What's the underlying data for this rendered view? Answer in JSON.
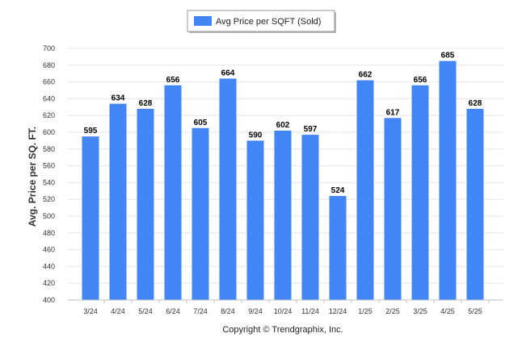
{
  "chart_data": {
    "type": "bar",
    "categories": [
      "3/24",
      "4/24",
      "5/24",
      "6/24",
      "7/24",
      "8/24",
      "9/24",
      "10/24",
      "11/24",
      "12/24",
      "1/25",
      "2/25",
      "3/25",
      "4/25",
      "5/25"
    ],
    "series": [
      {
        "name": "Avg Price per SQFT (Sold)",
        "values": [
          595,
          634,
          628,
          656,
          605,
          664,
          590,
          602,
          597,
          524,
          662,
          617,
          656,
          685,
          628
        ],
        "color": "#4285f4"
      }
    ],
    "ylabel": "Avg. Price per SQ. FT.",
    "xlabel": "",
    "ylim": [
      400,
      700
    ],
    "yticks": [
      400,
      420,
      440,
      460,
      480,
      500,
      520,
      540,
      560,
      580,
      600,
      620,
      640,
      660,
      680,
      700
    ],
    "grid": true,
    "legend": "top-center",
    "data_labels": true
  },
  "footer": {
    "copyright": "Copyright © Trendgraphix, Inc."
  }
}
